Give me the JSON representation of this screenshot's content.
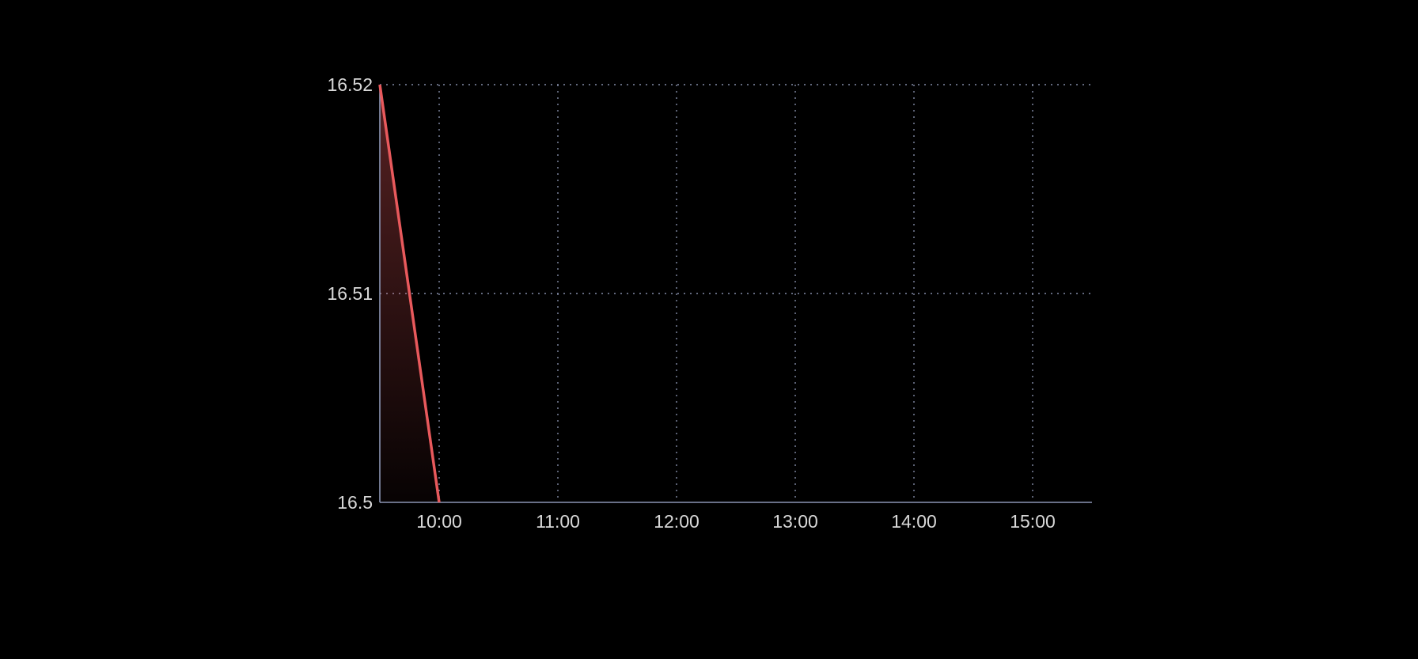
{
  "chart_data": {
    "type": "area",
    "title": "",
    "xlabel": "",
    "ylabel": "",
    "x_ticks": [
      "10:00",
      "11:00",
      "12:00",
      "13:00",
      "14:00",
      "15:00"
    ],
    "y_ticks": [
      "16.52",
      "16.51",
      "16.5"
    ],
    "xlim": [
      "09:30",
      "15:30"
    ],
    "ylim": [
      16.5,
      16.52
    ],
    "grid": true,
    "legend": "none",
    "series": [
      {
        "x": [
          "09:30",
          "10:00"
        ],
        "y": [
          16.52,
          16.5
        ],
        "color": "#e8595c"
      }
    ],
    "colors": {
      "background": "#000000",
      "line": "#e8595c",
      "axis": "#8c96b4",
      "grid": "#9aa4c4",
      "text": "#d8d8d8"
    }
  }
}
